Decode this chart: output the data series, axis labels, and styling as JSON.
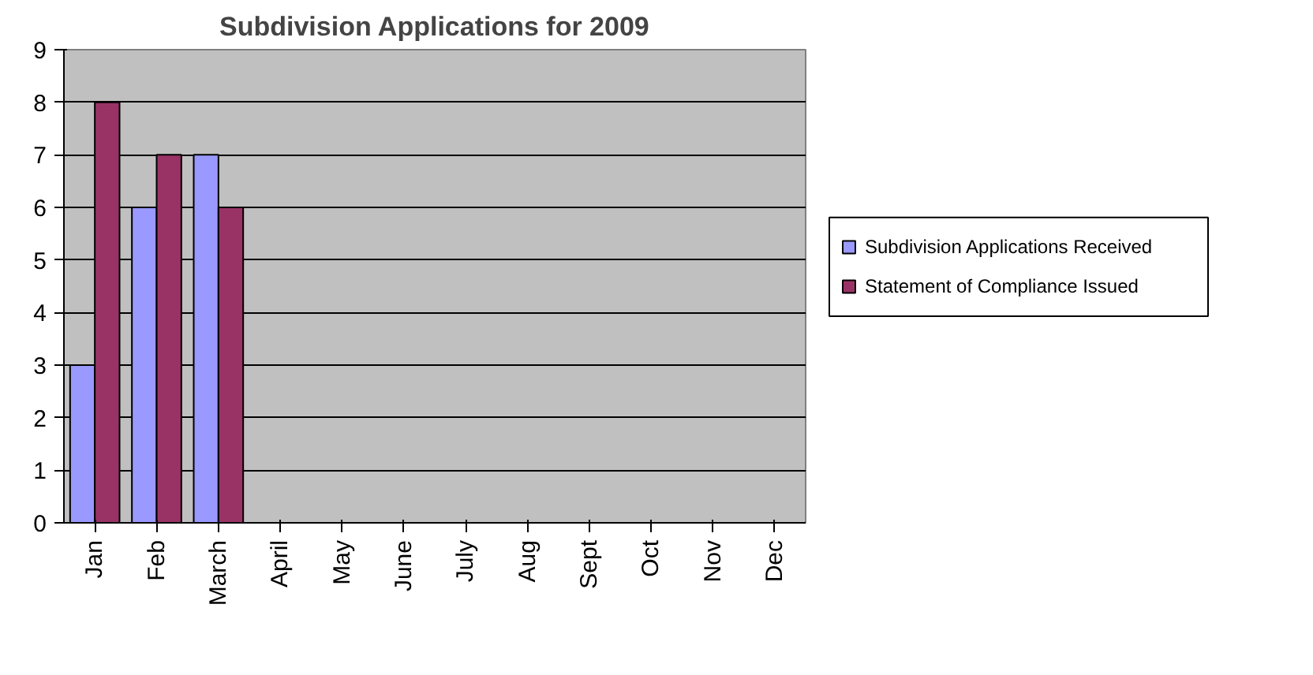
{
  "chart_data": {
    "type": "bar",
    "title": "Subdivision Applications for 2009",
    "categories": [
      "Jan",
      "Feb",
      "March",
      "April",
      "May",
      "June",
      "July",
      "Aug",
      "Sept",
      "Oct",
      "Nov",
      "Dec"
    ],
    "series": [
      {
        "name": "Subdivision Applications Received",
        "color": "#9999ff",
        "values": [
          3,
          6,
          7,
          null,
          null,
          null,
          null,
          null,
          null,
          null,
          null,
          null
        ]
      },
      {
        "name": "Statement of Compliance Issued",
        "color": "#993366",
        "values": [
          8,
          7,
          6,
          null,
          null,
          null,
          null,
          null,
          null,
          null,
          null,
          null
        ]
      }
    ],
    "ylim": [
      0,
      9
    ],
    "yticks": [
      0,
      1,
      2,
      3,
      4,
      5,
      6,
      7,
      8,
      9
    ],
    "grid": "y",
    "legend": "right"
  }
}
